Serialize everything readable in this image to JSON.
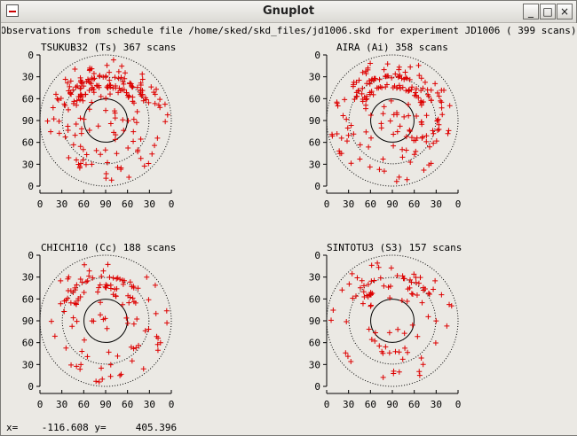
{
  "window": {
    "title": "Gnuplot",
    "minimize_glyph": "_",
    "maximize_glyph": "□",
    "close_glyph": "×"
  },
  "plot_title": "Observations from schedule file /home/sked/skd_files/jd1006.skd for experiment JD1006   ( 399 scans)",
  "panels": [
    {
      "label": "TSUKUB32 (Ts)  367 scans"
    },
    {
      "label": "AIRA (Ai)  358 scans"
    },
    {
      "label": "CHICHI10 (Cc)  188 scans"
    },
    {
      "label": "SINTOTU3 (S3)  157 scans"
    }
  ],
  "y_ticks": [
    "0",
    "30",
    "60",
    "90",
    "60",
    "30",
    "0"
  ],
  "x_ticks": [
    "0",
    "30",
    "60",
    "90",
    "60",
    "30",
    "0"
  ],
  "status": {
    "x_label": "x=",
    "x_value": "-116.608",
    "y_label": "y=",
    "y_value": "405.396"
  },
  "colors": {
    "points": "#dd0000",
    "frame": "#000000"
  },
  "chart_data": [
    {
      "type": "scatter",
      "station": "TSUKUB32 (Ts)",
      "scans": 367,
      "xlim": [
        0,
        180
      ],
      "ylim": [
        0,
        180
      ]
    },
    {
      "type": "scatter",
      "station": "AIRA (Ai)",
      "scans": 358,
      "xlim": [
        0,
        180
      ],
      "ylim": [
        0,
        180
      ]
    },
    {
      "type": "scatter",
      "station": "CHICHI10 (Cc)",
      "scans": 188,
      "xlim": [
        0,
        180
      ],
      "ylim": [
        0,
        180
      ]
    },
    {
      "type": "scatter",
      "station": "SINTOTU3 (S3)",
      "scans": 157,
      "xlim": [
        0,
        180
      ],
      "ylim": [
        0,
        180
      ]
    }
  ]
}
